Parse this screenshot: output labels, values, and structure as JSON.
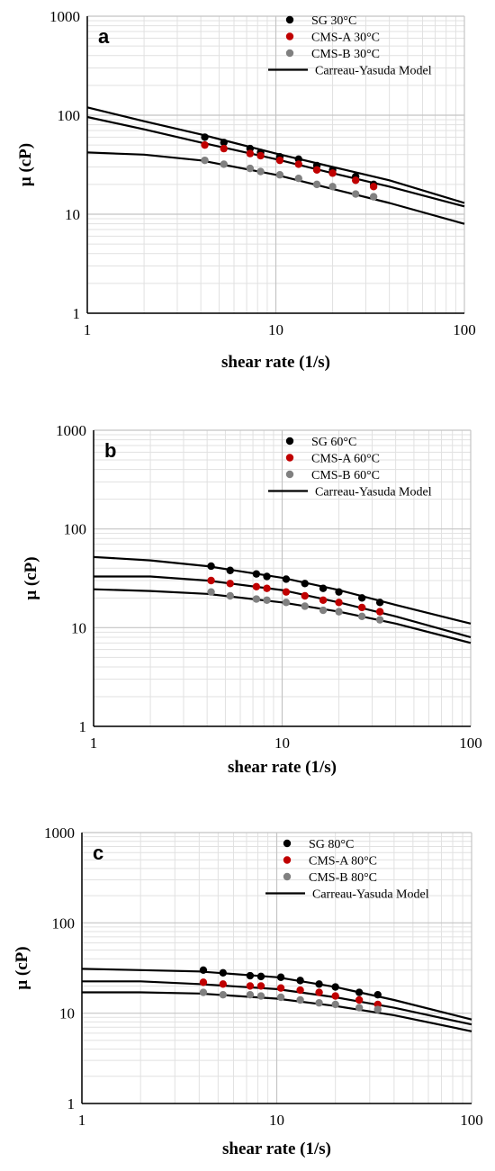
{
  "chart_data": [
    {
      "type": "scatter",
      "panel_label": "a",
      "title": "",
      "xlabel": "shear rate (1/s)",
      "ylabel": "μ (cP)",
      "x_scale": "log",
      "y_scale": "log",
      "xlim": [
        1,
        100
      ],
      "ylim": [
        1,
        1000
      ],
      "x_ticks": [
        "1",
        "10",
        "100"
      ],
      "y_ticks": [
        "1",
        "10",
        "100",
        "1000"
      ],
      "grid": true,
      "legend_position": "top-right",
      "series": [
        {
          "name": "SG 30°C",
          "kind": "points",
          "color": "#000000",
          "x": [
            4.2,
            5.3,
            7.3,
            8.3,
            10.5,
            13.2,
            16.5,
            20,
            26.5,
            33
          ],
          "y": [
            60,
            53,
            46,
            42,
            38,
            36,
            31,
            28,
            24,
            20
          ]
        },
        {
          "name": "CMS-A 30°C",
          "kind": "points",
          "color": "#c00000",
          "x": [
            4.2,
            5.3,
            7.3,
            8.3,
            10.5,
            13.2,
            16.5,
            20,
            26.5,
            33
          ],
          "y": [
            50,
            46,
            41,
            39,
            35,
            32,
            28,
            26,
            22,
            19
          ]
        },
        {
          "name": "CMS-B 30°C",
          "kind": "points",
          "color": "#808080",
          "x": [
            4.2,
            5.3,
            7.3,
            8.3,
            10.5,
            13.2,
            16.5,
            20,
            26.5,
            33
          ],
          "y": [
            35,
            32,
            29,
            27,
            25,
            23,
            20,
            19,
            16,
            15
          ]
        },
        {
          "name": "Carreau-Yasuda Model",
          "kind": "line",
          "color": "#000000",
          "lines": [
            {
              "x": [
                1,
                2,
                4,
                10,
                20,
                40,
                100
              ],
              "y": [
                120,
                87,
                64,
                41,
                30,
                22,
                13
              ]
            },
            {
              "x": [
                1,
                2,
                4,
                10,
                20,
                40,
                100
              ],
              "y": [
                96,
                72,
                53,
                36,
                26,
                19,
                12
              ]
            },
            {
              "x": [
                1,
                2,
                4,
                10,
                20,
                40,
                100
              ],
              "y": [
                42,
                40,
                35,
                25,
                18,
                13,
                8
              ]
            }
          ]
        }
      ]
    },
    {
      "type": "scatter",
      "panel_label": "b",
      "title": "",
      "xlabel": "shear rate (1/s)",
      "ylabel": "μ (cP)",
      "x_scale": "log",
      "y_scale": "log",
      "xlim": [
        1,
        100
      ],
      "ylim": [
        1,
        1000
      ],
      "x_ticks": [
        "1",
        "10",
        "100"
      ],
      "y_ticks": [
        "1",
        "10",
        "100",
        "1000"
      ],
      "grid": true,
      "legend_position": "top-right",
      "series": [
        {
          "name": "SG 60°C",
          "kind": "points",
          "color": "#000000",
          "x": [
            4.2,
            5.3,
            7.3,
            8.3,
            10.5,
            13.2,
            16.5,
            20,
            26.5,
            33
          ],
          "y": [
            42,
            38,
            35,
            33,
            31,
            28,
            25,
            23,
            20,
            18
          ]
        },
        {
          "name": "CMS-A 60°C",
          "kind": "points",
          "color": "#c00000",
          "x": [
            4.2,
            5.3,
            7.3,
            8.3,
            10.5,
            13.2,
            16.5,
            20,
            26.5,
            33
          ],
          "y": [
            30,
            28,
            26,
            25,
            23,
            21,
            19,
            18,
            16,
            14.5
          ]
        },
        {
          "name": "CMS-B 60°C",
          "kind": "points",
          "color": "#808080",
          "x": [
            4.2,
            5.3,
            7.3,
            8.3,
            10.5,
            13.2,
            16.5,
            20,
            26.5,
            33
          ],
          "y": [
            23,
            21,
            19.5,
            19,
            18,
            16.5,
            15,
            14.5,
            13,
            12
          ]
        },
        {
          "name": "Carreau-Yasuda Model",
          "kind": "line",
          "color": "#000000",
          "lines": [
            {
              "x": [
                1,
                2,
                4,
                10,
                20,
                40,
                100
              ],
              "y": [
                52,
                48,
                42,
                32,
                24,
                17,
                11
              ]
            },
            {
              "x": [
                1,
                2,
                4,
                10,
                20,
                40,
                100
              ],
              "y": [
                33,
                33,
                30,
                24,
                18,
                13,
                8
              ]
            },
            {
              "x": [
                1,
                2,
                4,
                10,
                20,
                40,
                100
              ],
              "y": [
                24.5,
                23.5,
                22,
                18,
                14.5,
                11,
                7
              ]
            }
          ]
        }
      ]
    },
    {
      "type": "scatter",
      "panel_label": "c",
      "title": "",
      "xlabel": "shear rate (1/s)",
      "ylabel": "μ (cP)",
      "x_scale": "log",
      "y_scale": "log",
      "xlim": [
        1,
        100
      ],
      "ylim": [
        1,
        1000
      ],
      "x_ticks": [
        "1",
        "10",
        "100"
      ],
      "y_ticks": [
        "1",
        "10",
        "100",
        "1000"
      ],
      "grid": true,
      "legend_position": "top-right",
      "series": [
        {
          "name": "SG 80°C",
          "kind": "points",
          "color": "#000000",
          "x": [
            4.2,
            5.3,
            7.3,
            8.3,
            10.5,
            13.2,
            16.5,
            20,
            26.5,
            33
          ],
          "y": [
            30,
            28,
            26,
            25.5,
            25,
            23,
            21,
            19.5,
            17,
            16
          ]
        },
        {
          "name": "CMS-A 80°C",
          "kind": "points",
          "color": "#c00000",
          "x": [
            4.2,
            5.3,
            7.3,
            8.3,
            10.5,
            13.2,
            16.5,
            20,
            26.5,
            33
          ],
          "y": [
            22,
            21,
            20,
            20,
            19,
            18,
            17,
            15.5,
            14,
            12.5
          ]
        },
        {
          "name": "CMS-B 80°C",
          "kind": "points",
          "color": "#808080",
          "x": [
            4.2,
            5.3,
            7.3,
            8.3,
            10.5,
            13.2,
            16.5,
            20,
            26.5,
            33
          ],
          "y": [
            17,
            16,
            16,
            15.5,
            15,
            14,
            13,
            12.5,
            11.5,
            11
          ]
        },
        {
          "name": "Carreau-Yasuda Model",
          "kind": "line",
          "color": "#000000",
          "lines": [
            {
              "x": [
                1,
                2,
                4,
                10,
                20,
                40,
                100
              ],
              "y": [
                31,
                30,
                29,
                25,
                19.5,
                14,
                8.5
              ]
            },
            {
              "x": [
                1,
                2,
                4,
                10,
                20,
                40,
                100
              ],
              "y": [
                22.5,
                22.5,
                21,
                18.5,
                15,
                11.5,
                7.5
              ]
            },
            {
              "x": [
                1,
                2,
                4,
                10,
                20,
                40,
                100
              ],
              "y": [
                17,
                17,
                16.5,
                14.5,
                12,
                9.5,
                6.3
              ]
            }
          ]
        }
      ]
    }
  ]
}
